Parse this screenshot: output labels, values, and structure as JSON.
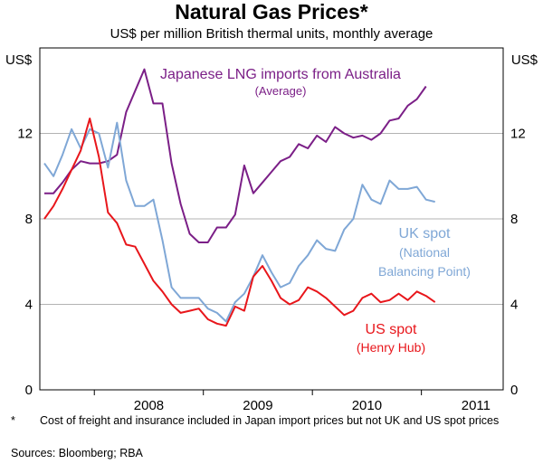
{
  "title": "Natural Gas Prices*",
  "subtitle": "US$ per million British thermal units, monthly average",
  "footnote": {
    "marker": "*",
    "text": "Cost of freight and insurance included in Japan import prices but not UK and US spot prices"
  },
  "sources": "Sources: Bloomberg; RBA",
  "chart_data": {
    "type": "line",
    "title": "Natural Gas Prices*",
    "subtitle": "US$ per million British thermal units, monthly average",
    "xlabel": "",
    "ylabel": "US$",
    "y_unit_left": "US$",
    "y_unit_right": "US$",
    "ylim": [
      0,
      16
    ],
    "yticks": [
      0,
      4,
      8,
      12
    ],
    "x_year_labels": [
      "2008",
      "2009",
      "2010",
      "2011"
    ],
    "x_start": "Jul 2007",
    "x_end": "Sep 2011",
    "x_months_total": 51,
    "grid": true,
    "series": [
      {
        "name": "Japanese LNG imports from Australia",
        "label_lines": [
          "Japanese LNG imports from Australia",
          "(Average)"
        ],
        "color": "#7b1f87",
        "start_month": 0,
        "values": [
          9.2,
          9.2,
          9.7,
          10.3,
          10.7,
          10.6,
          10.6,
          10.7,
          11.0,
          13.0,
          14.0,
          15.0,
          13.4,
          13.4,
          10.6,
          8.7,
          7.3,
          6.9,
          6.9,
          7.6,
          7.6,
          8.2,
          10.5,
          9.2,
          9.7,
          10.2,
          10.7,
          10.9,
          11.5,
          11.3,
          11.9,
          11.6,
          12.3,
          12.0,
          11.8,
          11.9,
          11.7,
          12.0,
          12.6,
          12.7,
          13.3,
          13.6,
          14.2
        ]
      },
      {
        "name": "UK spot",
        "label_lines": [
          "UK spot",
          "(National",
          "Balancing Point)"
        ],
        "color": "#7fa7d6",
        "start_month": 0,
        "values": [
          10.6,
          10.0,
          11.0,
          12.2,
          11.3,
          12.2,
          12.0,
          10.4,
          12.5,
          9.8,
          8.6,
          8.6,
          8.9,
          7.0,
          4.8,
          4.3,
          4.3,
          4.3,
          3.8,
          3.6,
          3.2,
          4.1,
          4.5,
          5.3,
          6.3,
          5.5,
          4.8,
          5.0,
          5.8,
          6.3,
          7.0,
          6.6,
          6.5,
          7.5,
          8.0,
          9.6,
          8.9,
          8.7,
          9.8,
          9.4,
          9.4,
          9.5,
          8.9,
          8.8
        ]
      },
      {
        "name": "US spot",
        "label_lines": [
          "US spot",
          "(Henry Hub)"
        ],
        "color": "#e8161b",
        "start_month": 0,
        "values": [
          8.0,
          8.6,
          9.4,
          10.3,
          11.2,
          12.7,
          10.9,
          8.3,
          7.8,
          6.8,
          6.7,
          5.9,
          5.1,
          4.6,
          4.0,
          3.6,
          3.7,
          3.8,
          3.3,
          3.1,
          3.0,
          3.9,
          3.7,
          5.3,
          5.8,
          5.1,
          4.3,
          4.0,
          4.2,
          4.8,
          4.6,
          4.3,
          3.9,
          3.5,
          3.7,
          4.3,
          4.5,
          4.1,
          4.2,
          4.5,
          4.2,
          4.6,
          4.4,
          4.1
        ]
      }
    ]
  }
}
